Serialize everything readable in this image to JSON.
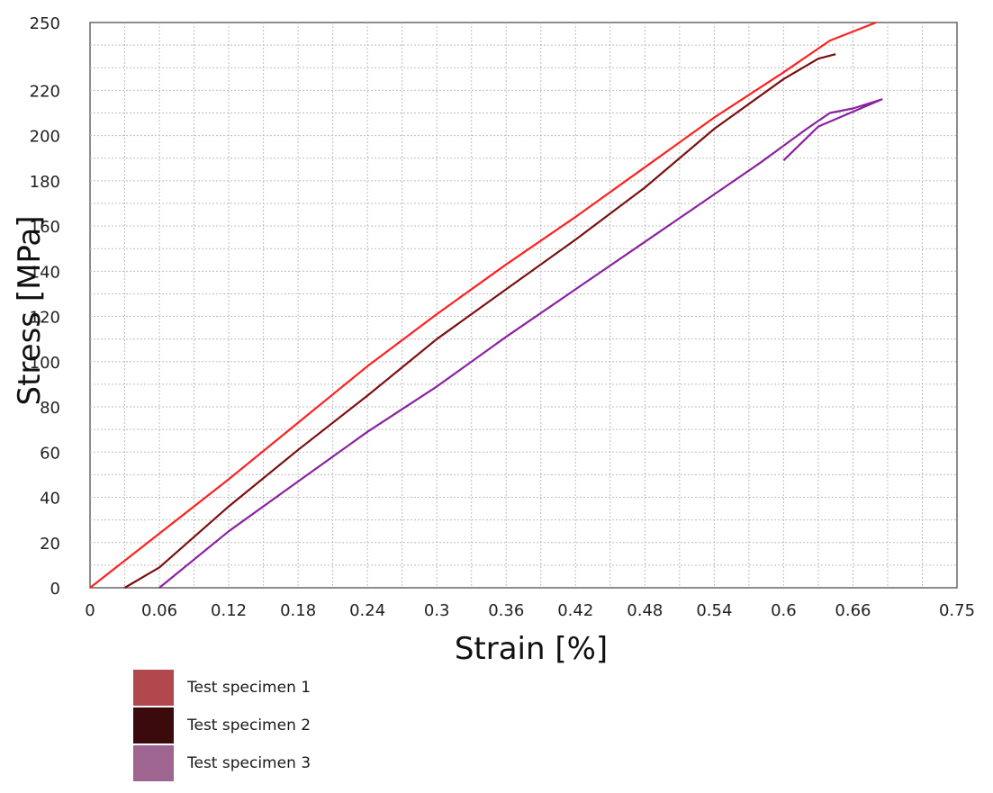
{
  "chart_data": {
    "type": "line",
    "xlabel": "Strain [%]",
    "ylabel": "Stress [MPa]",
    "xlim": [
      0,
      0.75
    ],
    "ylim": [
      0,
      250
    ],
    "x_ticks": [
      "0",
      "0.06",
      "0.12",
      "0.18",
      "0.24",
      "0.3",
      "0.36",
      "0.42",
      "0.48",
      "0.54",
      "0.6",
      "0.66",
      "0.75"
    ],
    "x_tick_values": [
      0,
      0.06,
      0.12,
      0.18,
      0.24,
      0.3,
      0.36,
      0.42,
      0.48,
      0.54,
      0.6,
      0.66,
      0.75
    ],
    "y_ticks": [
      "0",
      "20",
      "40",
      "60",
      "80",
      "100",
      "120",
      "140",
      "160",
      "180",
      "200",
      "220",
      "250"
    ],
    "y_tick_values": [
      0,
      20,
      40,
      60,
      80,
      100,
      120,
      140,
      160,
      180,
      200,
      220,
      250
    ],
    "grid": true,
    "legend_position": "bottom-left",
    "series": [
      {
        "name": "Test specimen 1",
        "color": "#ff2020",
        "legend_color": "#b0484e",
        "x": [
          0,
          0.06,
          0.12,
          0.18,
          0.24,
          0.3,
          0.36,
          0.42,
          0.48,
          0.54,
          0.6,
          0.64,
          0.68
        ],
        "y": [
          0,
          24,
          48,
          73,
          98,
          121,
          143,
          164,
          186,
          208,
          228,
          242,
          250
        ]
      },
      {
        "name": "Test specimen 2",
        "color": "#7a1010",
        "legend_color": "#3a0a0d",
        "x": [
          0.03,
          0.06,
          0.12,
          0.18,
          0.24,
          0.3,
          0.36,
          0.42,
          0.48,
          0.54,
          0.6,
          0.63,
          0.645
        ],
        "y": [
          0,
          9,
          36,
          61,
          85,
          110,
          132,
          154,
          177,
          203,
          225,
          234,
          236
        ]
      },
      {
        "name": "Test specimen 3",
        "color": "#8a22a0",
        "legend_color": "#9e6590",
        "x": [
          0.06,
          0.12,
          0.18,
          0.24,
          0.3,
          0.36,
          0.42,
          0.48,
          0.54,
          0.58,
          0.62,
          0.64,
          0.66,
          0.685,
          0.63,
          0.6
        ],
        "y": [
          0,
          25,
          47,
          69,
          89,
          111,
          132,
          153,
          174,
          188,
          203,
          210,
          212,
          216,
          204,
          189
        ]
      }
    ]
  }
}
